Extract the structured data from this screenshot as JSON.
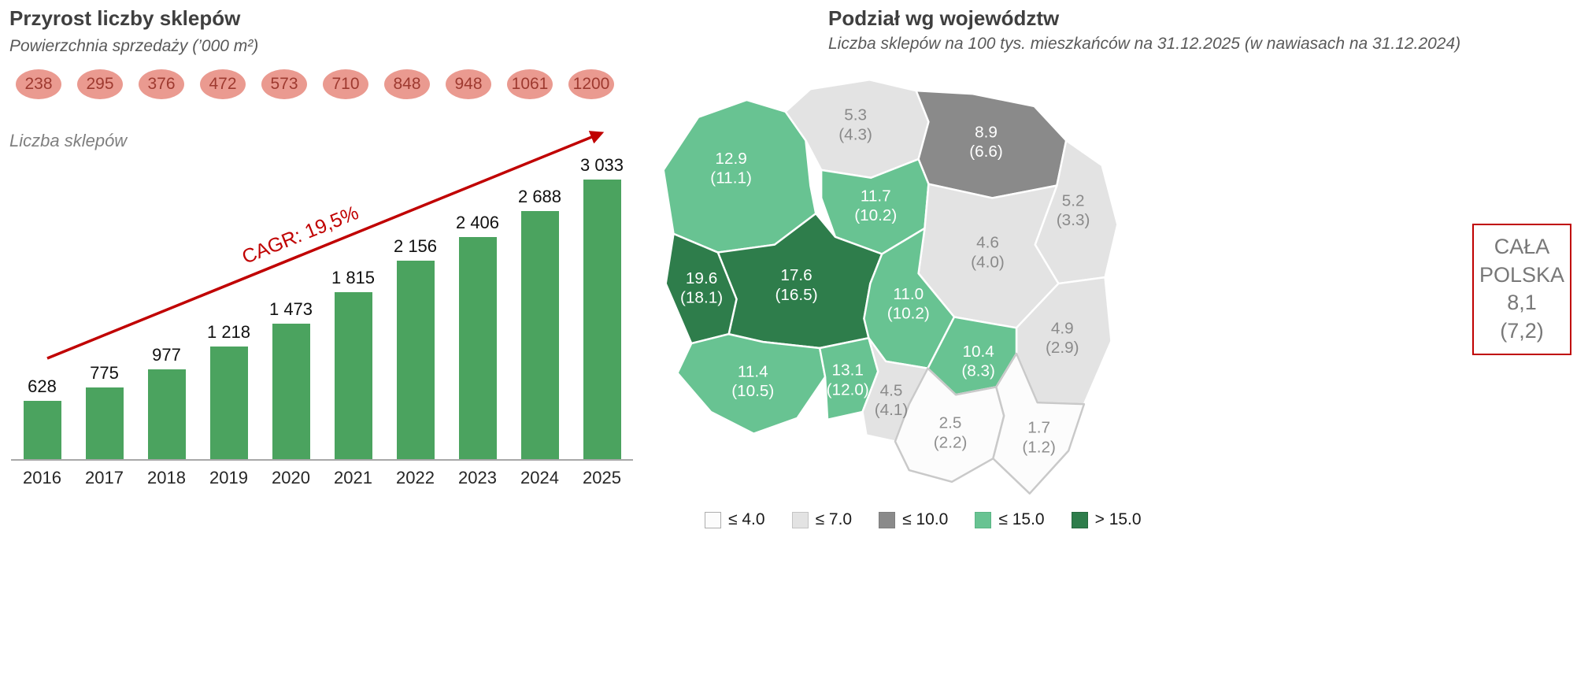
{
  "left_chart": {
    "title": "Przyrost liczby sklepów",
    "subtitle": "Powierzchnia sprzedaży (’000 m²)",
    "series_label": "Liczba sklepów",
    "cagr_label": "CAGR: 19,5%",
    "area_values": [
      "238",
      "295",
      "376",
      "472",
      "573",
      "710",
      "848",
      "948",
      "1061",
      "1200"
    ]
  },
  "map": {
    "title": "Podział wg województw",
    "subtitle": "Liczba sklepów na 100 tys. mieszkańców na 31.12.2025 (w nawiasach na 31.12.2024)",
    "total_box": {
      "label": "CAŁA POLSKA",
      "value": "8,1",
      "prev": "(7,2)"
    },
    "colors": {
      "le4": {
        "fill": "#FCFCFC",
        "stroke": "#C9C9C9",
        "text": "#8F8F8F",
        "swatch_border": "#ADADAD"
      },
      "le7": {
        "fill": "#E3E3E3",
        "stroke": "#FFFFFF",
        "text": "#8A8A8A",
        "swatch_border": "#C4C4C4"
      },
      "le10": {
        "fill": "#8A8A8A",
        "stroke": "#FFFFFF",
        "text": "#FFFFFF",
        "swatch_border": "#7F7F7F"
      },
      "le15": {
        "fill": "#68C392",
        "stroke": "#FFFFFF",
        "text": "#FFFFFF",
        "swatch_border": "#5BB585"
      },
      "gt15": {
        "fill": "#2E7D4B",
        "stroke": "#FFFFFF",
        "text": "#FFFFFF",
        "swatch_border": "#27693F"
      }
    },
    "legend": [
      {
        "label": "≤ 4.0",
        "category": "le4"
      },
      {
        "label": "≤ 7.0",
        "category": "le7"
      },
      {
        "label": "≤ 10.0",
        "category": "le10"
      },
      {
        "label": "≤ 15.0",
        "category": "le15"
      },
      {
        "label": "> 15.0",
        "category": "gt15"
      }
    ],
    "regions": [
      {
        "id": "zachodniopomorskie",
        "value": "12.9",
        "prev": "(11.1)",
        "category": "le15"
      },
      {
        "id": "pomorskie",
        "value": "5.3",
        "prev": "(4.3)",
        "category": "le7"
      },
      {
        "id": "warminsko-mazurskie",
        "value": "8.9",
        "prev": "(6.6)",
        "category": "le10"
      },
      {
        "id": "podlaskie",
        "value": "5.2",
        "prev": "(3.3)",
        "category": "le7"
      },
      {
        "id": "kujawsko-pomorskie",
        "value": "11.7",
        "prev": "(10.2)",
        "category": "le15"
      },
      {
        "id": "mazowieckie",
        "value": "4.6",
        "prev": "(4.0)",
        "category": "le7"
      },
      {
        "id": "wielkopolskie",
        "value": "17.6",
        "prev": "(16.5)",
        "category": "gt15"
      },
      {
        "id": "lubuskie",
        "value": "19.6",
        "prev": "(18.1)",
        "category": "gt15"
      },
      {
        "id": "lodzkie",
        "value": "11.0",
        "prev": "(10.2)",
        "category": "le15"
      },
      {
        "id": "lubelskie",
        "value": "4.9",
        "prev": "(2.9)",
        "category": "le7"
      },
      {
        "id": "dolnoslaskie",
        "value": "11.4",
        "prev": "(10.5)",
        "category": "le15"
      },
      {
        "id": "opolskie",
        "value": "13.1",
        "prev": "(12.0)",
        "category": "le15"
      },
      {
        "id": "slaskie",
        "value": "4.5",
        "prev": "(4.1)",
        "category": "le7"
      },
      {
        "id": "swietokrzyskie",
        "value": "10.4",
        "prev": "(8.3)",
        "category": "le15"
      },
      {
        "id": "malopolskie",
        "value": "2.5",
        "prev": "(2.2)",
        "category": "le4"
      },
      {
        "id": "podkarpackie",
        "value": "1.7",
        "prev": "(1.2)",
        "category": "le4"
      }
    ]
  },
  "chart_data": [
    {
      "type": "bar",
      "title": "Przyrost liczby sklepów",
      "categories": [
        "2016",
        "2017",
        "2018",
        "2019",
        "2020",
        "2021",
        "2022",
        "2023",
        "2024",
        "2025"
      ],
      "values": [
        628,
        775,
        977,
        1218,
        1473,
        1815,
        2156,
        2406,
        2688,
        3033
      ],
      "value_labels": [
        "628",
        "775",
        "977",
        "1 218",
        "1 473",
        "1 815",
        "2 156",
        "2 406",
        "2 688",
        "3 033"
      ],
      "series_name": "Liczba sklepów",
      "secondary_series": {
        "name": "Powierzchnia sprzedaży (’000 m²)",
        "values": [
          238,
          295,
          376,
          472,
          573,
          710,
          848,
          948,
          1061,
          1200
        ]
      },
      "annotation": "CAGR: 19,5%",
      "bar_color": "#4BA35F",
      "xlabel": "",
      "ylabel": "",
      "ylim": [
        0,
        3033
      ],
      "grid": false,
      "legend_position": "none"
    },
    {
      "type": "heatmap",
      "title": "Podział wg województw",
      "subtitle": "Liczba sklepów na 100 tys. mieszkańców na 31.12.2025 (w nawiasach na 31.12.2024)",
      "legend_thresholds": [
        "≤ 4.0",
        "≤ 7.0",
        "≤ 10.0",
        "≤ 15.0",
        "> 15.0"
      ],
      "overall": {
        "label": "CAŁA POLSKA",
        "value_2025": 8.1,
        "value_2024": 7.2
      },
      "regions": [
        {
          "id": "zachodniopomorskie",
          "value_2025": 12.9,
          "value_2024": 11.1
        },
        {
          "id": "pomorskie",
          "value_2025": 5.3,
          "value_2024": 4.3
        },
        {
          "id": "warminsko-mazurskie",
          "value_2025": 8.9,
          "value_2024": 6.6
        },
        {
          "id": "podlaskie",
          "value_2025": 5.2,
          "value_2024": 3.3
        },
        {
          "id": "kujawsko-pomorskie",
          "value_2025": 11.7,
          "value_2024": 10.2
        },
        {
          "id": "mazowieckie",
          "value_2025": 4.6,
          "value_2024": 4.0
        },
        {
          "id": "wielkopolskie",
          "value_2025": 17.6,
          "value_2024": 16.5
        },
        {
          "id": "lubuskie",
          "value_2025": 19.6,
          "value_2024": 18.1
        },
        {
          "id": "lodzkie",
          "value_2025": 11.0,
          "value_2024": 10.2
        },
        {
          "id": "lubelskie",
          "value_2025": 4.9,
          "value_2024": 2.9
        },
        {
          "id": "dolnoslaskie",
          "value_2025": 11.4,
          "value_2024": 10.5
        },
        {
          "id": "opolskie",
          "value_2025": 13.1,
          "value_2024": 12.0
        },
        {
          "id": "slaskie",
          "value_2025": 4.5,
          "value_2024": 4.1
        },
        {
          "id": "swietokrzyskie",
          "value_2025": 10.4,
          "value_2024": 8.3
        },
        {
          "id": "malopolskie",
          "value_2025": 2.5,
          "value_2024": 2.2
        },
        {
          "id": "podkarpackie",
          "value_2025": 1.7,
          "value_2024": 1.2
        }
      ]
    }
  ]
}
